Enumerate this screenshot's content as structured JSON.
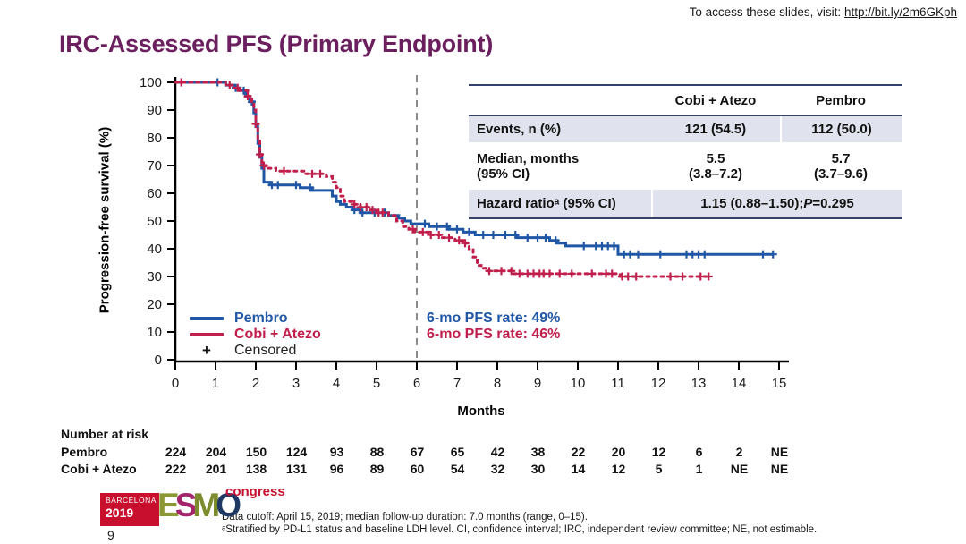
{
  "slide": {
    "access_prefix": "To access these slides, visit: ",
    "access_link": "http://bit.ly/2m6GKph",
    "title": "IRC-Assessed PFS (Primary Endpoint)",
    "page_number": "9",
    "footnote_line1": "Data cutoff: April 15, 2019; median follow-up duration: 7.0 months (range, 0–15).",
    "footnote_line2": "ᵃStratified by PD-L1 status and baseline LDH level. CI, confidence interval; IRC, independent review committee; NE, not estimable."
  },
  "logo": {
    "city": "BARCELONA",
    "year": "2019",
    "letters": [
      "E",
      "S",
      "M",
      "O"
    ],
    "congress": "congress"
  },
  "results_table": {
    "col_headers": [
      "Cobi + Atezo",
      "Pembro"
    ],
    "events_label": "Events, n (%)",
    "events_cobi": "121 (54.5)",
    "events_pembro": "112 (50.0)",
    "median_label": "Median, months\n(95% CI)",
    "median_cobi": "5.5\n(3.8–7.2)",
    "median_pembro": "5.7\n(3.7–9.6)",
    "hr_label": "Hazard ratioᵃ (95% CI)",
    "hr_value_prefix": "1.15 (0.88–1.50); ",
    "hr_p_italic": "P",
    "hr_p_suffix": "=0.295"
  },
  "legend": {
    "pembro": "Pembro",
    "cobi": "Cobi + Atezo",
    "censored_symbol": "+",
    "censored": "Censored"
  },
  "annotations": {
    "pembro_rate": "6-mo PFS rate: 49%",
    "cobi_rate": "6-mo PFS rate: 46%"
  },
  "colors": {
    "pembro_blue": "#2056A6",
    "cobi_red": "#C11F4B",
    "title_purple": "#6B1F5E",
    "table_line_navy": "#33416B",
    "row_shade": "#E0E3EE",
    "reference_dash_gray": "#8C8C8C",
    "logo_red": "#C8102E"
  },
  "chart_data": {
    "type": "line",
    "subtype": "kaplan-meier-step",
    "title": "",
    "xlabel": "Months",
    "ylabel": "Progression-free survival (%)",
    "xlim": [
      0,
      15
    ],
    "ylim": [
      0,
      100
    ],
    "xticks": [
      0,
      1,
      2,
      3,
      4,
      5,
      6,
      7,
      8,
      9,
      10,
      11,
      12,
      13,
      14,
      15
    ],
    "yticks": [
      0,
      10,
      20,
      30,
      40,
      50,
      60,
      70,
      80,
      90,
      100
    ],
    "grid": false,
    "legend_position": "lower-left-inside",
    "reference_line_month": 6,
    "six_month_rates": {
      "Pembro": 49,
      "Cobi + Atezo": 46
    },
    "series": [
      {
        "name": "Pembro",
        "color": "#2056A6",
        "dash": "",
        "points": [
          [
            0,
            100
          ],
          [
            1.1,
            100
          ],
          [
            1.25,
            99
          ],
          [
            1.45,
            98
          ],
          [
            1.6,
            97
          ],
          [
            1.75,
            95
          ],
          [
            1.85,
            93
          ],
          [
            1.95,
            89
          ],
          [
            2.0,
            84
          ],
          [
            2.05,
            78
          ],
          [
            2.1,
            73
          ],
          [
            2.15,
            69
          ],
          [
            2.2,
            64
          ],
          [
            2.35,
            63
          ],
          [
            3.1,
            62
          ],
          [
            3.4,
            61
          ],
          [
            3.9,
            59
          ],
          [
            4.0,
            57
          ],
          [
            4.1,
            56
          ],
          [
            4.25,
            55
          ],
          [
            4.4,
            54
          ],
          [
            4.6,
            53
          ],
          [
            5.3,
            52
          ],
          [
            5.55,
            51
          ],
          [
            5.7,
            50
          ],
          [
            5.85,
            49
          ],
          [
            6.3,
            48
          ],
          [
            6.8,
            47
          ],
          [
            7.15,
            46
          ],
          [
            7.45,
            45
          ],
          [
            8.5,
            44
          ],
          [
            9.3,
            43
          ],
          [
            9.5,
            42
          ],
          [
            9.7,
            41
          ],
          [
            11.0,
            38
          ],
          [
            14.85,
            38
          ]
        ],
        "censor_months": [
          1.05,
          1.5,
          1.7,
          1.9,
          2.4,
          2.55,
          3.0,
          3.35,
          4.45,
          4.65,
          4.95,
          5.2,
          6.2,
          6.5,
          6.75,
          7.0,
          7.3,
          7.65,
          7.9,
          8.2,
          8.45,
          8.75,
          9.0,
          9.2,
          9.45,
          10.15,
          10.45,
          10.6,
          10.75,
          10.9,
          11.15,
          11.3,
          11.5,
          12.05,
          12.7,
          12.85,
          13.0,
          13.15,
          14.6,
          14.85
        ]
      },
      {
        "name": "Cobi + Atezo",
        "color": "#C11F4B",
        "dash": "3 5",
        "points": [
          [
            0,
            100
          ],
          [
            1.1,
            100
          ],
          [
            1.25,
            99
          ],
          [
            1.45,
            98
          ],
          [
            1.6,
            97
          ],
          [
            1.8,
            95
          ],
          [
            1.9,
            93
          ],
          [
            1.95,
            90
          ],
          [
            2.0,
            85
          ],
          [
            2.05,
            79
          ],
          [
            2.1,
            74
          ],
          [
            2.15,
            70
          ],
          [
            2.25,
            69
          ],
          [
            2.5,
            68
          ],
          [
            3.2,
            67
          ],
          [
            3.75,
            66
          ],
          [
            3.9,
            64
          ],
          [
            4.0,
            62
          ],
          [
            4.1,
            59
          ],
          [
            4.2,
            57
          ],
          [
            4.4,
            56
          ],
          [
            4.6,
            55
          ],
          [
            4.8,
            54
          ],
          [
            5.0,
            53
          ],
          [
            5.3,
            52
          ],
          [
            5.5,
            50
          ],
          [
            5.65,
            48
          ],
          [
            5.8,
            47
          ],
          [
            5.95,
            46
          ],
          [
            6.3,
            45
          ],
          [
            6.6,
            44
          ],
          [
            6.95,
            43
          ],
          [
            7.15,
            42
          ],
          [
            7.3,
            40
          ],
          [
            7.4,
            37
          ],
          [
            7.5,
            34
          ],
          [
            7.6,
            33
          ],
          [
            7.75,
            32
          ],
          [
            8.4,
            31
          ],
          [
            11.05,
            30
          ],
          [
            13.25,
            30
          ]
        ],
        "censor_months": [
          0.15,
          1.35,
          1.55,
          1.8,
          2.0,
          2.1,
          2.2,
          2.7,
          3.4,
          3.6,
          4.45,
          4.6,
          4.75,
          4.9,
          5.05,
          5.15,
          5.9,
          6.15,
          6.35,
          6.55,
          6.8,
          7.05,
          7.2,
          7.8,
          8.1,
          8.35,
          8.55,
          8.75,
          8.9,
          9.05,
          9.15,
          9.3,
          9.55,
          9.85,
          10.35,
          10.7,
          10.85,
          11.1,
          11.25,
          11.45,
          12.3,
          12.6,
          13.05,
          13.25
        ]
      }
    ]
  },
  "number_at_risk": {
    "header": "Number at risk",
    "rows": [
      {
        "label": "Pembro",
        "values": [
          "224",
          "204",
          "150",
          "124",
          "93",
          "88",
          "67",
          "65",
          "42",
          "38",
          "22",
          "20",
          "12",
          "6",
          "2",
          "NE"
        ]
      },
      {
        "label": "Cobi + Atezo",
        "values": [
          "222",
          "201",
          "138",
          "131",
          "96",
          "89",
          "60",
          "54",
          "32",
          "30",
          "14",
          "12",
          "5",
          "1",
          "NE",
          "NE"
        ]
      }
    ]
  }
}
